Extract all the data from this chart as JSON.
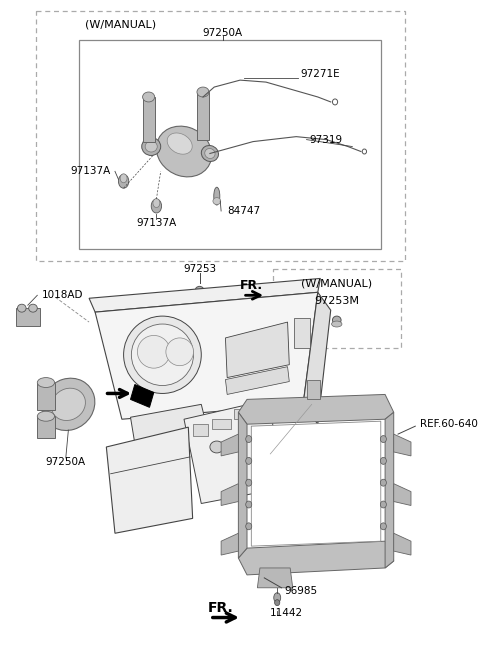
{
  "bg_color": "#ffffff",
  "fig_width": 4.8,
  "fig_height": 6.57,
  "dpi": 100,
  "line_color": "#444444",
  "gray_fill": "#c8c8c8",
  "light_gray": "#e8e8e8",
  "dark_gray": "#888888",
  "labels": {
    "w_manual_top": "(W/MANUAL)",
    "97250A_top": "97250A",
    "97271E": "97271E",
    "97319": "97319",
    "97137A_left": "97137A",
    "97137A_bottom": "97137A",
    "84747": "84747",
    "97253": "97253",
    "FR_top": "FR.",
    "w_manual_box": "(W/MANUAL)",
    "97253M": "97253M",
    "1018AD": "1018AD",
    "97250A_bottom": "97250A",
    "REF_60_640": "REF.60-640",
    "96985": "96985",
    "11442": "11442",
    "FR_bottom": "FR."
  }
}
